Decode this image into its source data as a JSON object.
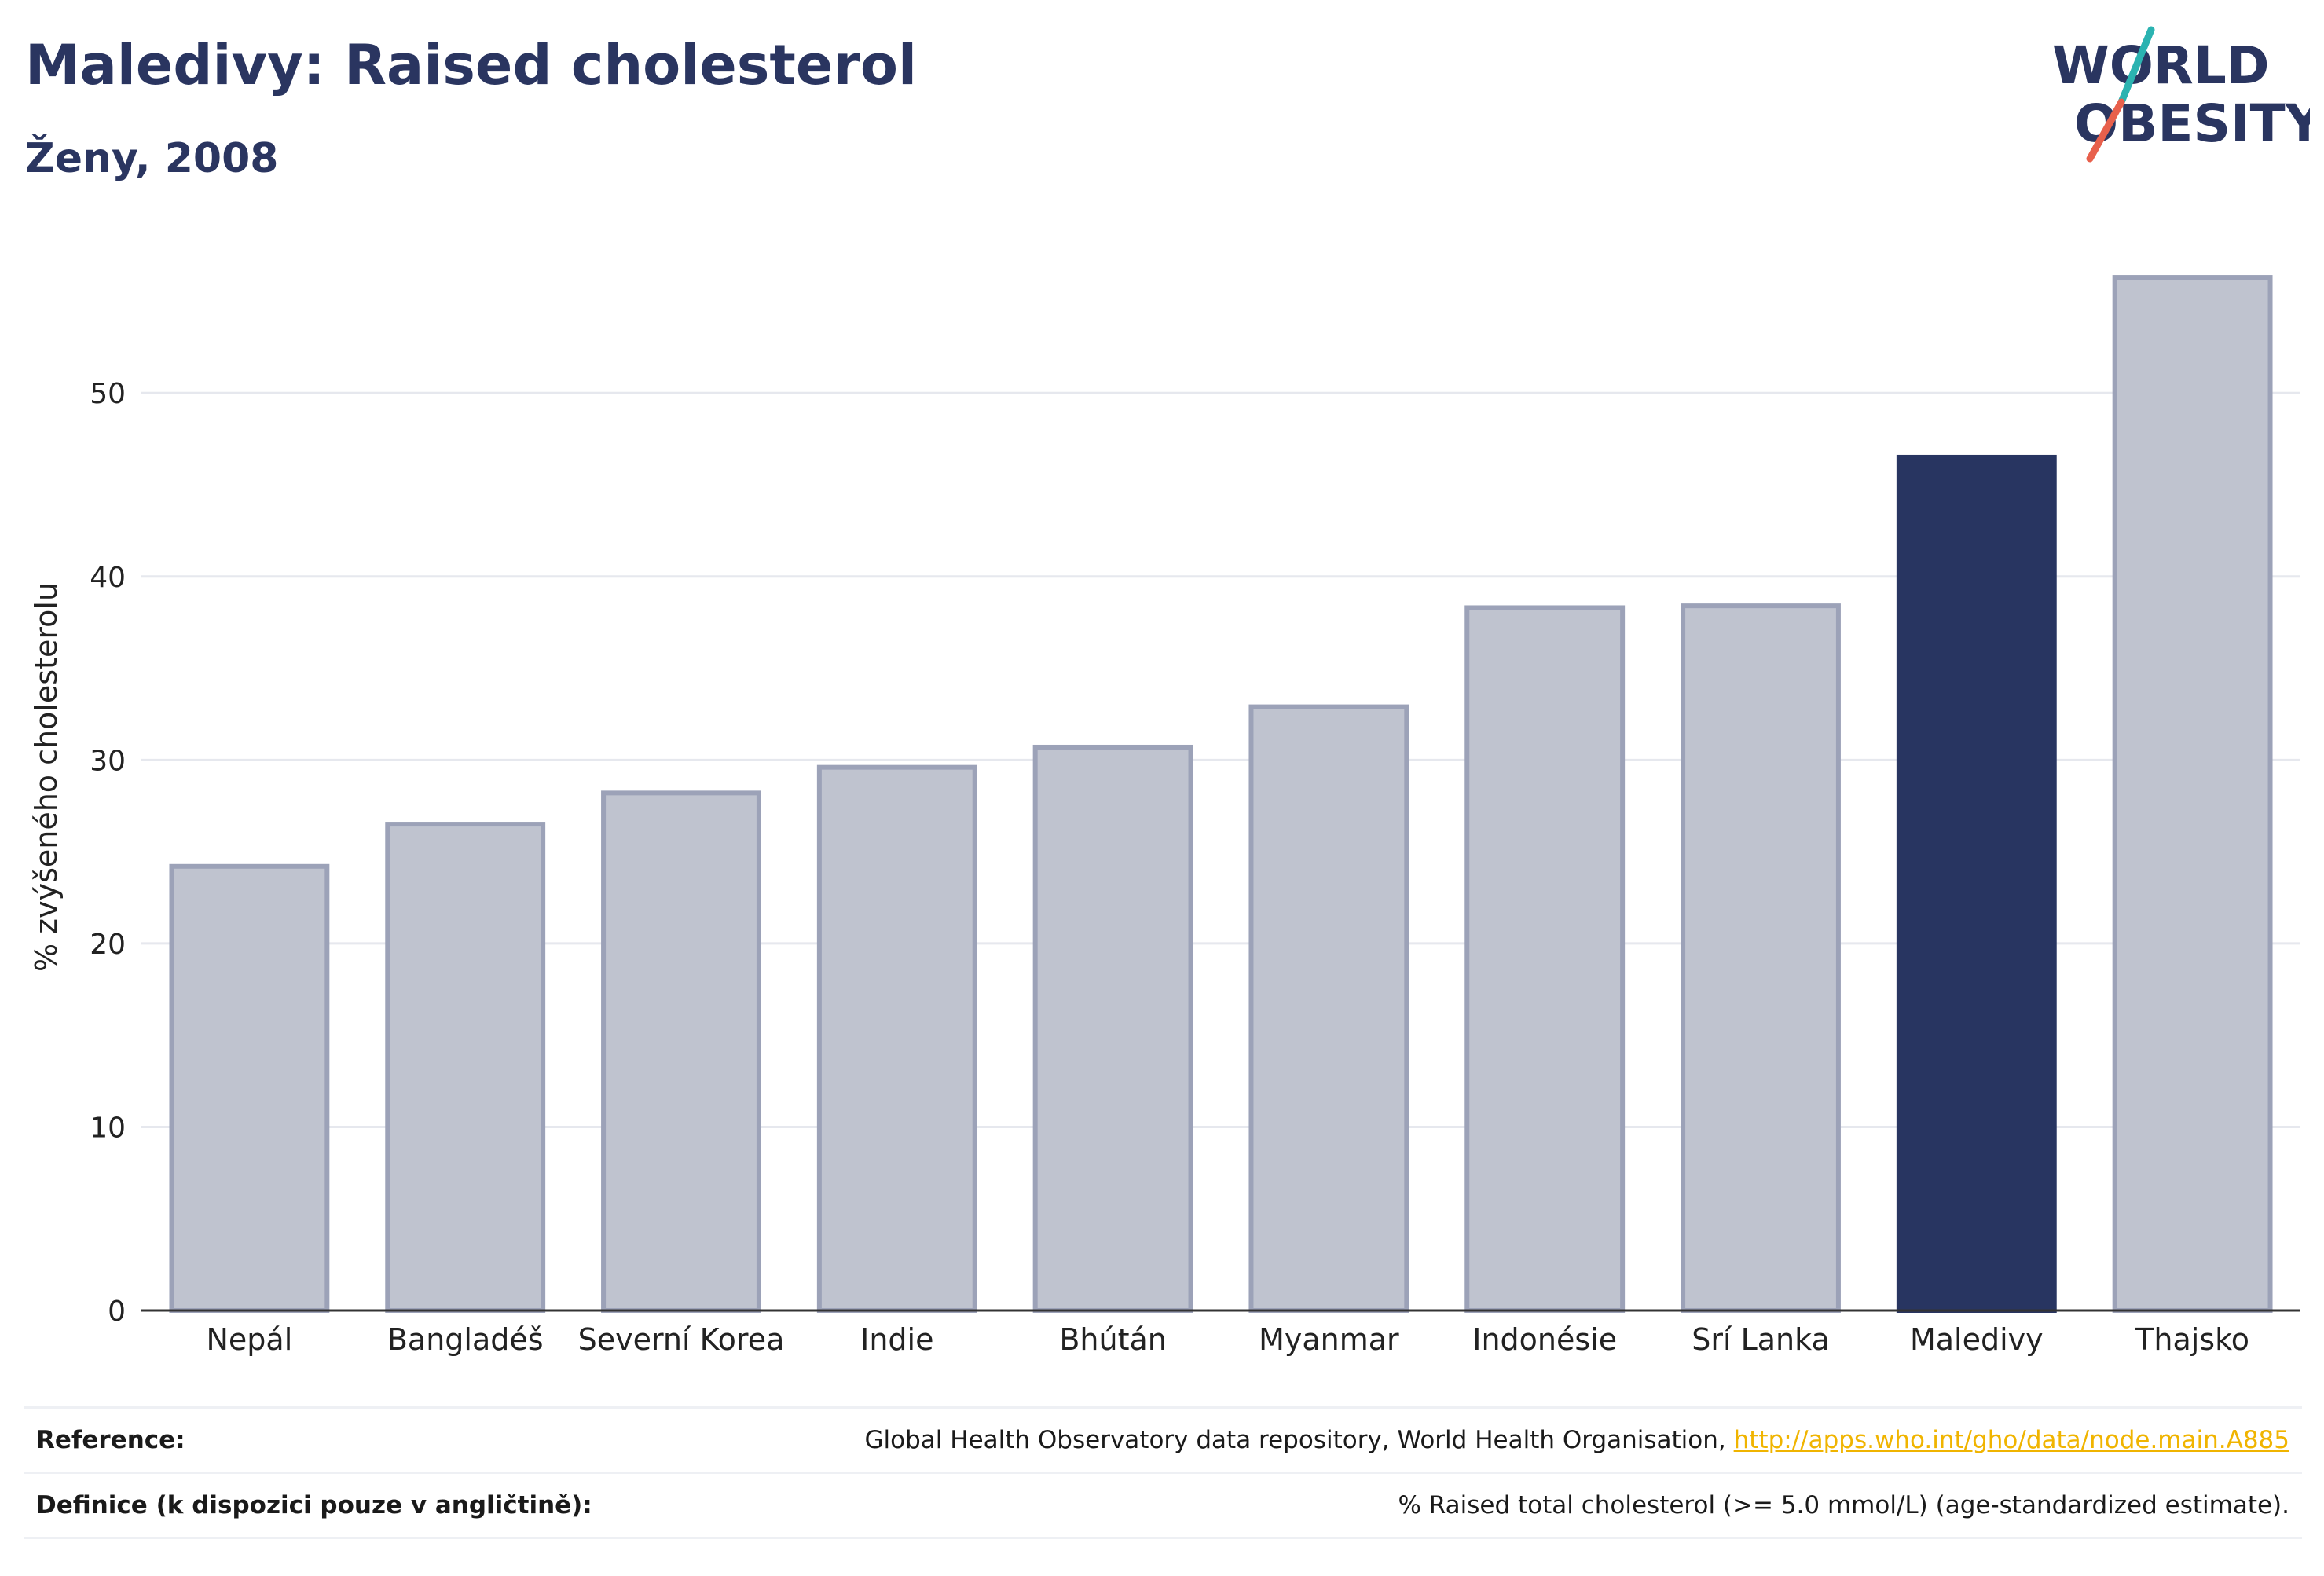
{
  "header": {
    "title": "Maledivy: Raised cholesterol",
    "subtitle": "Ženy, 2008"
  },
  "logo": {
    "line1": "WORLD",
    "line2": "OBESITY",
    "colors": {
      "text": "#2a3560",
      "accent_teal": "#2bb3b1",
      "accent_red": "#e8604c"
    }
  },
  "chart_data": {
    "type": "bar",
    "categories": [
      "Nepál",
      "Bangladéš",
      "Severní Korea",
      "Indie",
      "Bhútán",
      "Myanmar",
      "Indonésie",
      "Srí Lanka",
      "Maledivy",
      "Thajsko"
    ],
    "values": [
      24.2,
      26.5,
      28.2,
      29.6,
      30.7,
      32.9,
      38.3,
      38.4,
      46.5,
      56.3
    ],
    "highlight": "Maledivy",
    "ylabel": "% zvýšeného cholesterolu",
    "ylim": [
      0,
      59
    ],
    "yticks": [
      0,
      10,
      20,
      30,
      40,
      50
    ],
    "grid": true,
    "colors": {
      "bar": "#bfc3cf",
      "bar_border": "#9ca2b8",
      "highlight": "#283561",
      "grid": "#e6e8ee",
      "axis": "#333333"
    }
  },
  "footer": {
    "reference_label": "Reference:",
    "reference_text": "Global Health Observatory data repository, World Health Organisation, ",
    "reference_link": "http://apps.who.int/gho/data/node.main.A885",
    "definition_label": "Definice (k dispozici pouze v angličtině):",
    "definition_text": "% Raised total cholesterol (>= 5.0 mmol/L) (age-standardized estimate)."
  }
}
